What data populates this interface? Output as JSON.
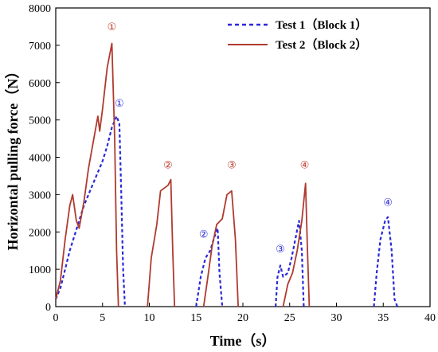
{
  "chart_data": {
    "type": "line",
    "xlabel": "Time（s）",
    "ylabel": "Horizontal pulling force（N）",
    "xlim": [
      0,
      40
    ],
    "ylim": [
      0,
      8000
    ],
    "xticks": [
      0,
      5,
      10,
      15,
      20,
      25,
      30,
      35,
      40
    ],
    "yticks": [
      0,
      1000,
      2000,
      3000,
      4000,
      5000,
      6000,
      7000,
      8000
    ],
    "grid": false,
    "legend": "top-right",
    "series": [
      {
        "name": "Test 1（Block 1）",
        "color": "#2a2ad9",
        "style": "dotted",
        "segments": [
          [
            [
              0,
              200
            ],
            [
              0.5,
              500
            ],
            [
              1,
              1000
            ],
            [
              1.5,
              1500
            ],
            [
              2,
              1900
            ],
            [
              2.5,
              2300
            ],
            [
              3,
              2700
            ],
            [
              3.5,
              3000
            ],
            [
              4,
              3300
            ],
            [
              4.5,
              3600
            ],
            [
              5,
              3900
            ],
            [
              5.5,
              4300
            ],
            [
              6,
              4800
            ],
            [
              6.5,
              5100
            ],
            [
              6.8,
              4900
            ],
            [
              7,
              3000
            ],
            [
              7.2,
              1000
            ],
            [
              7.4,
              0
            ]
          ],
          [
            [
              15,
              0
            ],
            [
              15.5,
              800
            ],
            [
              16,
              1300
            ],
            [
              16.5,
              1500
            ],
            [
              17,
              1900
            ],
            [
              17.3,
              2100
            ],
            [
              17.5,
              900
            ],
            [
              17.8,
              0
            ]
          ],
          [
            [
              23.5,
              0
            ],
            [
              23.7,
              800
            ],
            [
              24,
              1100
            ],
            [
              24.3,
              800
            ],
            [
              24.8,
              900
            ],
            [
              25.2,
              1300
            ],
            [
              25.6,
              1800
            ],
            [
              26,
              2300
            ],
            [
              26.3,
              1500
            ],
            [
              26.5,
              0
            ]
          ],
          [
            [
              34,
              0
            ],
            [
              34.3,
              900
            ],
            [
              34.7,
              1800
            ],
            [
              35.2,
              2300
            ],
            [
              35.5,
              2400
            ],
            [
              35.9,
              1500
            ],
            [
              36.2,
              200
            ],
            [
              36.5,
              0
            ]
          ]
        ]
      },
      {
        "name": "Test 2（Block 2）",
        "color": "#b03a2e",
        "style": "solid",
        "segments": [
          [
            [
              0,
              200
            ],
            [
              0.5,
              700
            ],
            [
              1,
              1800
            ],
            [
              1.5,
              2700
            ],
            [
              1.8,
              3000
            ],
            [
              2.2,
              2300
            ],
            [
              2.5,
              2100
            ],
            [
              3,
              2800
            ],
            [
              3.5,
              3700
            ],
            [
              4,
              4400
            ],
            [
              4.5,
              5100
            ],
            [
              4.7,
              4700
            ],
            [
              5,
              5300
            ],
            [
              5.5,
              6400
            ],
            [
              6,
              7050
            ],
            [
              6.3,
              4500
            ],
            [
              6.5,
              1500
            ],
            [
              6.7,
              0
            ]
          ],
          [
            [
              9.8,
              0
            ],
            [
              10.2,
              1300
            ],
            [
              10.8,
              2200
            ],
            [
              11.2,
              3100
            ],
            [
              12,
              3250
            ],
            [
              12.3,
              3400
            ],
            [
              12.5,
              1500
            ],
            [
              12.7,
              0
            ]
          ],
          [
            [
              15.8,
              0
            ],
            [
              16.2,
              700
            ],
            [
              16.7,
              1600
            ],
            [
              17.2,
              2200
            ],
            [
              17.8,
              2350
            ],
            [
              18.3,
              3000
            ],
            [
              18.8,
              3100
            ],
            [
              19.2,
              1800
            ],
            [
              19.5,
              0
            ]
          ],
          [
            [
              24.3,
              0
            ],
            [
              24.8,
              600
            ],
            [
              25.3,
              900
            ],
            [
              25.8,
              1500
            ],
            [
              26.3,
              2300
            ],
            [
              26.7,
              3300
            ],
            [
              26.9,
              1500
            ],
            [
              27.1,
              0
            ]
          ]
        ]
      }
    ],
    "annotations": [
      {
        "text": "①",
        "x": 6.0,
        "y": 7400,
        "color": "#c0392b"
      },
      {
        "text": "②",
        "x": 12.0,
        "y": 3700,
        "color": "#c0392b"
      },
      {
        "text": "③",
        "x": 18.8,
        "y": 3700,
        "color": "#c0392b"
      },
      {
        "text": "④",
        "x": 26.6,
        "y": 3700,
        "color": "#c0392b"
      },
      {
        "text": "①",
        "x": 6.8,
        "y": 5350,
        "color": "#2a2ad9"
      },
      {
        "text": "②",
        "x": 15.8,
        "y": 1850,
        "color": "#2a2ad9"
      },
      {
        "text": "③",
        "x": 24.0,
        "y": 1450,
        "color": "#2a2ad9"
      },
      {
        "text": "④",
        "x": 35.5,
        "y": 2700,
        "color": "#2a2ad9"
      }
    ]
  }
}
